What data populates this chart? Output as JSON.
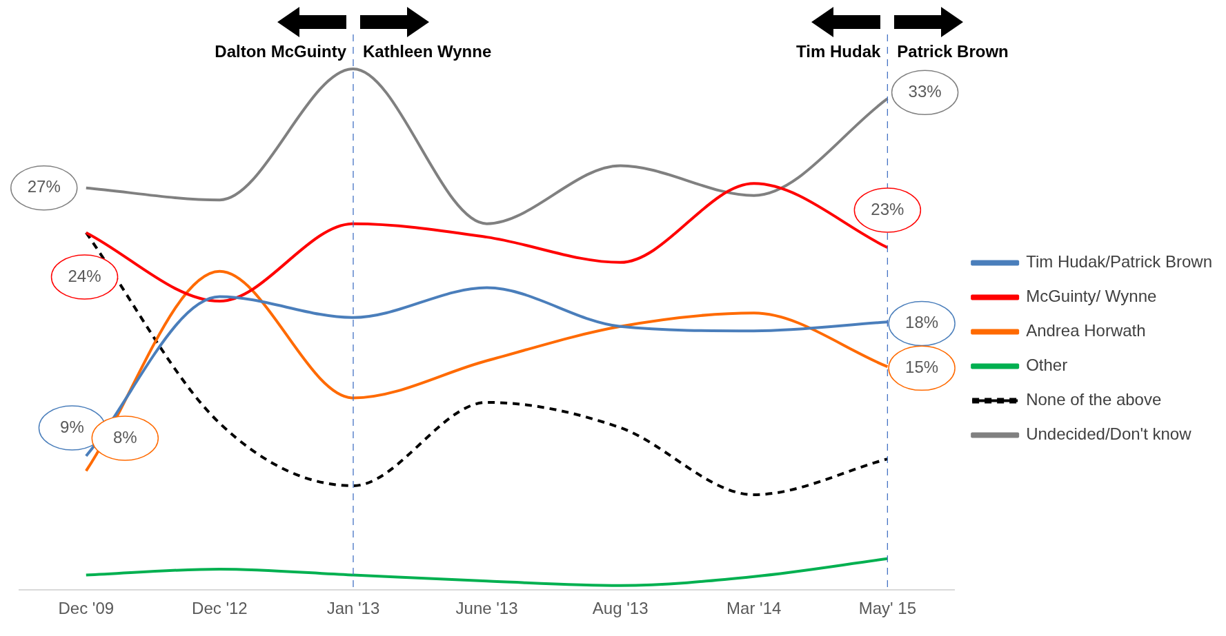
{
  "chart_data": {
    "type": "line",
    "categories": [
      "Dec '09",
      "Dec '12",
      "Jan '13",
      "June '13",
      "Aug '13",
      "Mar '14",
      "May' 15"
    ],
    "series": [
      {
        "name": "Tim Hudak/Patrick Brown",
        "color": "#4a7ebb",
        "values": [
          9,
          19.7,
          18.3,
          20.3,
          17.7,
          17.4,
          18
        ],
        "value_labels": [
          "9%",
          null,
          null,
          null,
          null,
          null,
          "18%"
        ]
      },
      {
        "name": "McGuinty/ Wynne",
        "color": "#ff0000",
        "values": [
          24,
          19.4,
          24.6,
          23.7,
          22,
          27.3,
          23
        ],
        "value_labels": [
          "24%",
          null,
          null,
          null,
          null,
          null,
          "23%"
        ]
      },
      {
        "name": "Andrea Horwath",
        "color": "#ff6a00",
        "values": [
          8,
          21.4,
          12.9,
          15.4,
          17.7,
          18.6,
          15
        ],
        "value_labels": [
          "8%",
          null,
          null,
          null,
          null,
          null,
          "15%"
        ]
      },
      {
        "name": "Other",
        "color": "#00b050",
        "values": [
          1,
          1.4,
          1,
          0.6,
          0.3,
          0.9,
          2.1
        ]
      },
      {
        "name": "None of the above",
        "color": "#000000",
        "line_style": "dashed",
        "values": [
          24,
          11.2,
          7,
          12.6,
          10.9,
          6.4,
          8.8
        ]
      },
      {
        "name": "Undecided/Don't know",
        "color": "#808080",
        "values": [
          27,
          26.2,
          35,
          24.6,
          28.5,
          26.5,
          33
        ],
        "value_labels": [
          "27%",
          null,
          null,
          null,
          null,
          null,
          "33%"
        ]
      }
    ],
    "legend": "right",
    "marker": "none",
    "line_style": "solid",
    "grid": false,
    "ref_lines": [
      {
        "axis": "x",
        "value": "Jan '13",
        "color": "#4472c4",
        "line_style": "dashed"
      },
      {
        "axis": "x",
        "value": "May' 15",
        "color": "#4472c4",
        "line_style": "dashed"
      }
    ],
    "annotations": [
      "Dalton McGuinty",
      "Kathleen Wynne",
      "Tim Hudak",
      "Patrick Brown"
    ]
  }
}
